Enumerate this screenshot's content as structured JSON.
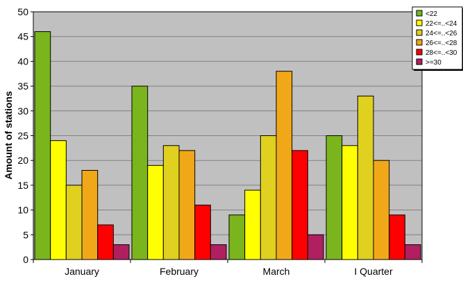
{
  "chart_data": {
    "type": "bar",
    "title": "",
    "xlabel": "",
    "ylabel": "Amount of stations",
    "ylim": [
      0,
      50
    ],
    "yticks": [
      0,
      5,
      10,
      15,
      20,
      25,
      30,
      35,
      40,
      45,
      50
    ],
    "grid": true,
    "legend_position": "top-right",
    "plot_background": "#c0c0c0",
    "categories": [
      "January",
      "February",
      "March",
      "I Quarter"
    ],
    "series": [
      {
        "name": "<22",
        "color": "#7ab51d",
        "values": [
          46,
          35,
          9,
          25
        ]
      },
      {
        "name": "22<=..<24",
        "color": "#ffff00",
        "values": [
          24,
          19,
          14,
          23
        ]
      },
      {
        "name": "24<=..<26",
        "color": "#e0d020",
        "values": [
          15,
          23,
          25,
          33
        ]
      },
      {
        "name": "26<=..<28",
        "color": "#f0a818",
        "values": [
          18,
          22,
          38,
          20
        ]
      },
      {
        "name": "28<=..<30",
        "color": "#ff0000",
        "values": [
          7,
          11,
          22,
          9
        ]
      },
      {
        "name": ">=30",
        "color": "#b02060",
        "values": [
          3,
          3,
          5,
          3
        ]
      }
    ]
  }
}
